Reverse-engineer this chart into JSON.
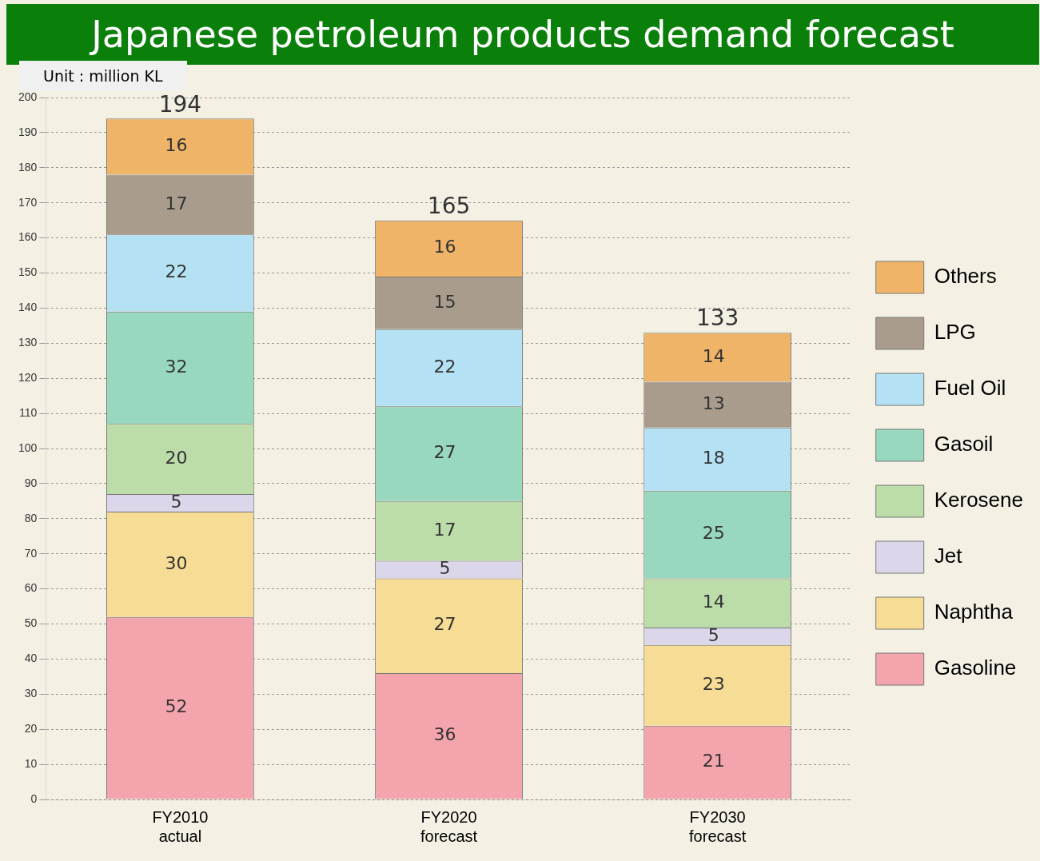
{
  "chart_data": {
    "type": "bar",
    "title": "Japanese petroleum products demand forecast",
    "annotations": [
      "Unit : million KL"
    ],
    "categories": [
      "FY2010 actual",
      "FY2020 forecast",
      "FY2030 forecast"
    ],
    "stacked": true,
    "series": [
      {
        "name": "Gasoline",
        "color": "#f4a4ac",
        "values": [
          52,
          36,
          21
        ]
      },
      {
        "name": "Naphtha",
        "color": "#f6dc94",
        "values": [
          30,
          27,
          23
        ]
      },
      {
        "name": "Jet",
        "color": "#dcd6ea",
        "values": [
          5,
          5,
          5
        ]
      },
      {
        "name": "Kerosene",
        "color": "#bcdcaa",
        "values": [
          20,
          17,
          14
        ]
      },
      {
        "name": "Gasoil",
        "color": "#98d8be",
        "values": [
          32,
          27,
          25
        ]
      },
      {
        "name": "Fuel Oil",
        "color": "#b4e2f4",
        "values": [
          22,
          22,
          18
        ]
      },
      {
        "name": "LPG",
        "color": "#aa9c8c",
        "values": [
          17,
          15,
          13
        ]
      },
      {
        "name": "Others",
        "color": "#f0b468",
        "values": [
          16,
          16,
          14
        ]
      }
    ],
    "totals": [
      "194",
      "165",
      "133"
    ],
    "data_labels": true,
    "ylim": [
      0,
      200
    ],
    "yticks": [
      0,
      10,
      20,
      30,
      40,
      50,
      60,
      70,
      80,
      90,
      100,
      110,
      120,
      130,
      140,
      150,
      160,
      170,
      180,
      190,
      200
    ],
    "grid": "y",
    "legend": "right"
  }
}
